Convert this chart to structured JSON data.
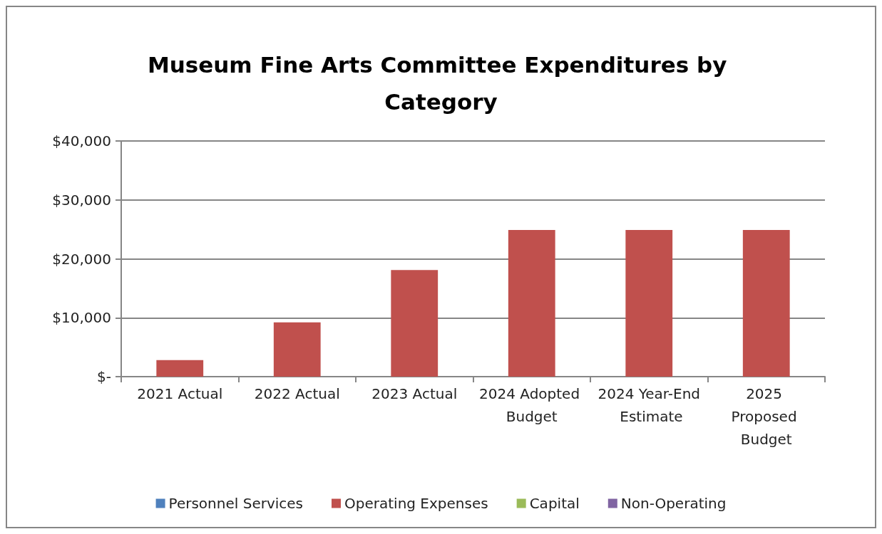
{
  "chart_data": {
    "type": "bar",
    "title": "Museum Fine Arts Committee Expenditures by Category",
    "categories": [
      "2021 Actual",
      "2022 Actual",
      "2023 Actual",
      "2024 Adopted Budget",
      "2024 Year-End Estimate",
      "2025 Proposed Budget"
    ],
    "series": [
      {
        "name": "Personnel Services",
        "color": "#4f81bd",
        "values": [
          null,
          null,
          null,
          null,
          null,
          null
        ]
      },
      {
        "name": "Operating Expenses",
        "color": "#c0504d",
        "values": [
          2800,
          9200,
          18100,
          24900,
          24900,
          24900
        ]
      },
      {
        "name": "Capital",
        "color": "#9bbb59",
        "values": [
          null,
          null,
          null,
          null,
          null,
          null
        ]
      },
      {
        "name": "Non-Operating",
        "color": "#8064a2",
        "values": [
          null,
          null,
          null,
          null,
          null,
          null
        ]
      }
    ],
    "stacked": true,
    "ylim": [
      0,
      40000
    ],
    "yticks": [
      {
        "value": 0,
        "label": "$-"
      },
      {
        "value": 10000,
        "label": "$10,000"
      },
      {
        "value": 20000,
        "label": "$20,000"
      },
      {
        "value": 30000,
        "label": "$30,000"
      },
      {
        "value": 40000,
        "label": "$40,000"
      }
    ],
    "grid": "y",
    "legend": "bottom"
  }
}
